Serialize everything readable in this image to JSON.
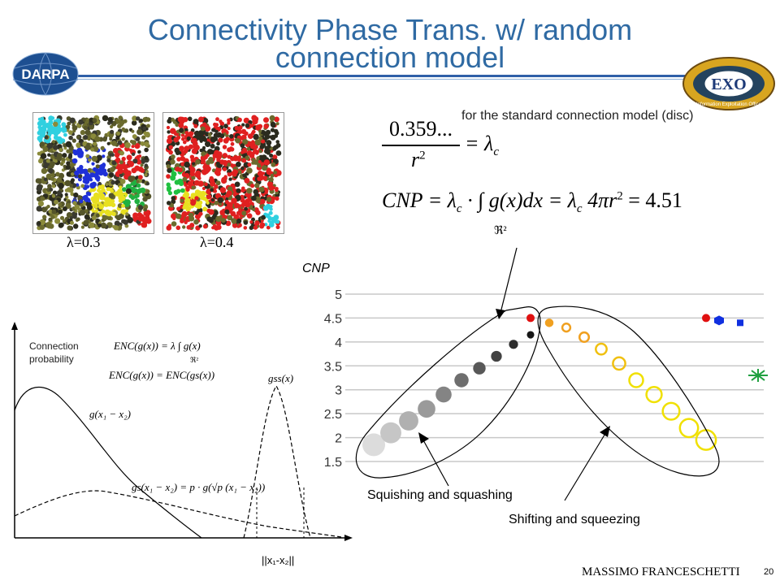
{
  "slide": {
    "title": "Connectivity Phase Trans. w/ random connection model",
    "title_line1": "Connectivity Phase Trans. w/ random",
    "title_line2": "connection model",
    "left_logo": "DARPA",
    "right_logo_center": "EXO",
    "right_logo_text": "Information Exploitation Office",
    "page_number": "20",
    "author": "MASSIMO FRANCESCHETTI"
  },
  "simulations": [
    {
      "label": "λ=0.3"
    },
    {
      "label": "λ=0.4"
    }
  ],
  "formulas": {
    "caption": "for the standard connection model (disc)",
    "f1_num": "0.359...",
    "f1_den": "r",
    "f1_exp": "2",
    "f1_rhs": "= λ",
    "f1_sub": "c",
    "f2": "CNP = λc · ∫ g(x)dx = λc 4πr² = 4.51",
    "f2_lhs": "CNP = λ",
    "f2_sub1": "c",
    "f2_mid": " · ∫ g(x)dx = λ",
    "f2_sub2": "c",
    "f2_rhs": " 4πr",
    "f2_exp": "2",
    "f2_end": " = 4.51",
    "f2_domain": "ℜ²"
  },
  "left_plot": {
    "ylabel_line1": "Connection",
    "ylabel_line2": "probability",
    "eq1": "ENC(g(x)) = λ ∫ g(x)",
    "eq1_domain": "ℜ²",
    "eq2": "ENC(g(x)) = ENC(gs(x))",
    "label_gss": "gss(x)",
    "label_g": "g(x₁ − x₂)",
    "label_gs": "gs(x₁ − x₂) = p · g(√p (x₁ − x₂))",
    "xlabel": "||x₁-x₂||"
  },
  "chart_data": {
    "type": "scatter",
    "ylabel": "CNP",
    "yticks": [
      "5",
      "4.5",
      "4",
      "3.5",
      "3",
      "2.5",
      "2",
      "1.5"
    ],
    "ylim": [
      1.5,
      5
    ],
    "annotations": [
      "Squishing and squashing",
      "Shifting and squeezing"
    ],
    "series": [
      {
        "values": [
          1.85,
          2.1,
          2.35,
          2.6,
          2.9,
          3.2,
          3.45,
          3.7,
          3.95,
          4.15
        ]
      },
      {
        "values": [
          4.5
        ]
      },
      {
        "values": [
          4.4,
          4.3,
          4.1,
          3.85,
          3.55,
          3.2,
          2.9,
          2.55,
          2.2,
          1.95
        ]
      },
      {
        "values": [
          4.5,
          4.45,
          4.4
        ]
      },
      {
        "values": [
          3.3
        ]
      }
    ]
  },
  "colors": {
    "title": "#2f6aa3",
    "header_line": "#2f5fa8",
    "red": "#e01010",
    "orange": "#f0a020",
    "yellow": "#f0e000",
    "gray_dark": "#222222",
    "gray_light": "#dddddd",
    "blue": "#1030e0",
    "green": "#20a040"
  }
}
